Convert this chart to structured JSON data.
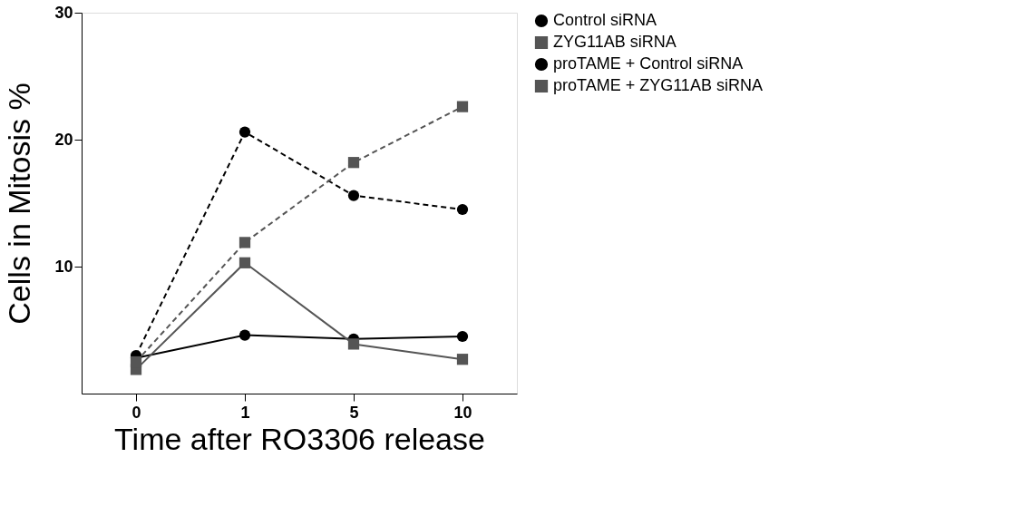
{
  "chart_data": {
    "type": "line",
    "xlabel": "Time after RO3306 release",
    "ylabel": "Cells in Mitosis %",
    "categories": [
      "0",
      "1",
      "5",
      "10"
    ],
    "ylim": [
      0,
      30
    ],
    "yticks": [
      10,
      20,
      30
    ],
    "grid": false,
    "legend": "right",
    "series": [
      {
        "name": "Control siRNA",
        "color": "#000000",
        "marker": "circle",
        "line_style": "solid",
        "values": [
          2.8,
          4.6,
          4.3,
          4.5
        ]
      },
      {
        "name": "ZYG11AB siRNA",
        "color": "#555555",
        "marker": "square",
        "line_style": "solid",
        "values": [
          1.9,
          10.3,
          3.9,
          2.7
        ]
      },
      {
        "name": "proTAME + Control siRNA",
        "color": "#000000",
        "marker": "circle",
        "line_style": "dashed",
        "values": [
          3.0,
          20.6,
          15.6,
          14.5
        ]
      },
      {
        "name": "proTAME + ZYG11AB siRNA",
        "color": "#555555",
        "marker": "square",
        "line_style": "dashed",
        "values": [
          2.5,
          11.9,
          18.2,
          22.6
        ]
      }
    ]
  }
}
